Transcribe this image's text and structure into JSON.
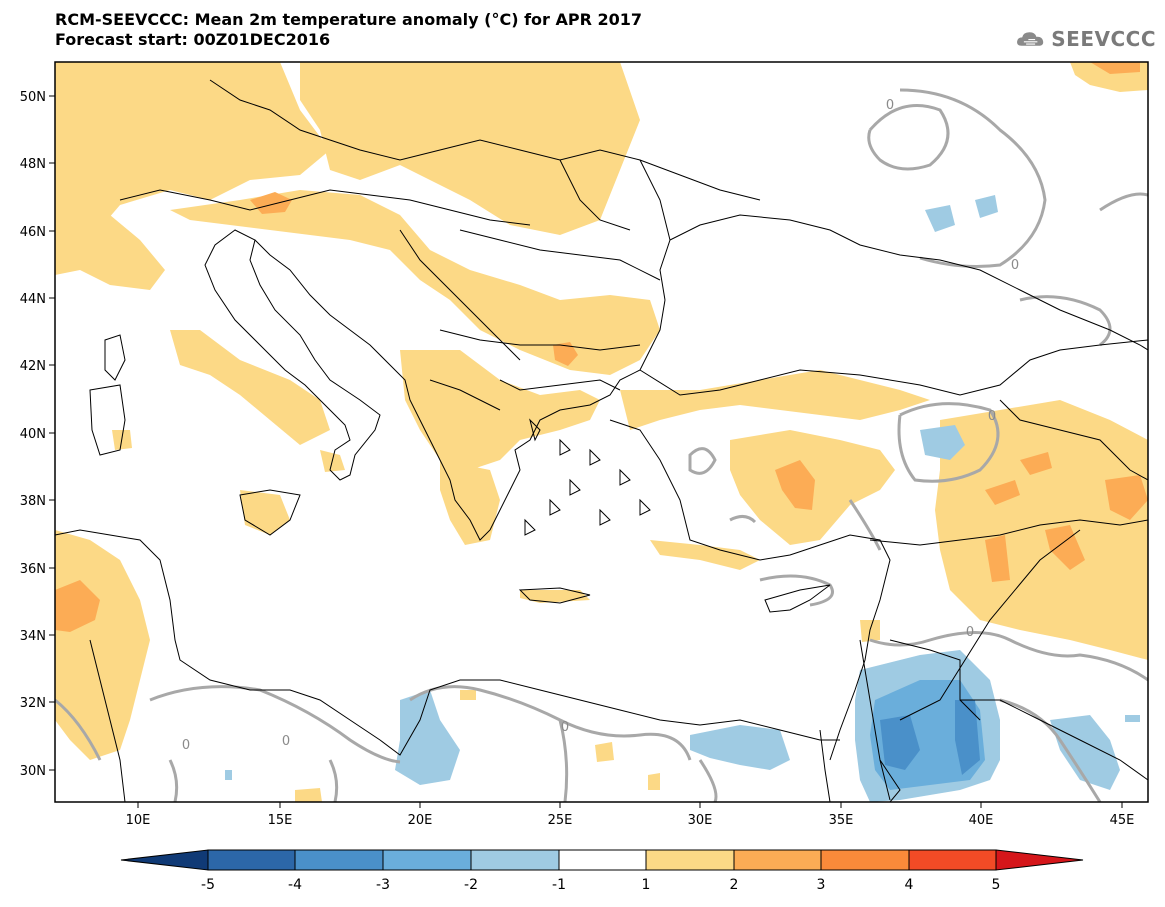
{
  "header": {
    "title_line1": "RCM-SEEVCCC: Mean 2m temperature anomaly (°C) for APR 2017",
    "title_line2": "Forecast start: 00Z01DEC2016",
    "logo_text": "SEEVCCC"
  },
  "map": {
    "lat_labels": [
      "50N",
      "48N",
      "46N",
      "44N",
      "42N",
      "40N",
      "38N",
      "36N",
      "34N",
      "32N",
      "30N"
    ],
    "lon_labels": [
      "10E",
      "15E",
      "20E",
      "25E",
      "30E",
      "35E",
      "40E",
      "45E"
    ],
    "contour_label": "0",
    "colors": {
      "pos1": "#fcd986",
      "pos2": "#fcac55",
      "pos3": "#fa8a3a",
      "pos4": "#f24b26",
      "pos5": "#d5161a",
      "neg1": "#9fcbe3",
      "neg2": "#6aaedb",
      "neg3": "#4a90c9",
      "neg4": "#2c67a8",
      "neg5": "#103a76",
      "zero_contour": "#a8a8a8",
      "coast": "#000000"
    }
  },
  "colorbar": {
    "labels": [
      "-5",
      "-4",
      "-3",
      "-2",
      "-1",
      "1",
      "2",
      "3",
      "4",
      "5"
    ],
    "colors": [
      "#103a76",
      "#2c67a8",
      "#4a90c9",
      "#6aaedb",
      "#9fcbe3",
      "#ffffff",
      "#fcd986",
      "#fcac55",
      "#fa8a3a",
      "#f24b26",
      "#d5161a"
    ]
  }
}
